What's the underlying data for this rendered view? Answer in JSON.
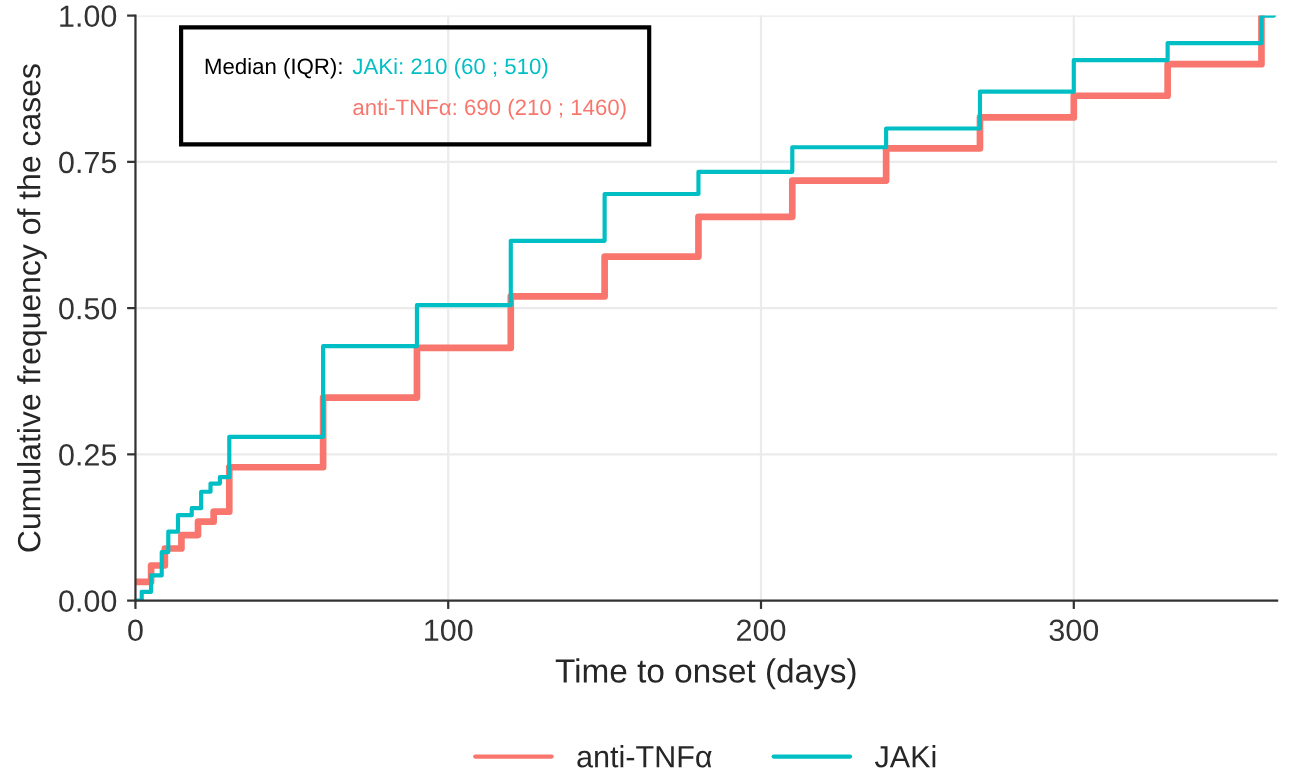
{
  "chart_data": {
    "type": "step",
    "xlabel": "Time to onset (days)",
    "ylabel": "Cumulative frequency of the cases",
    "annotations": [
      "Median (IQR):",
      "JAKi: 210 (60 ; 510)",
      "anti-TNFα: 690 (210 ; 1460)"
    ],
    "series": [
      {
        "name": "anti-TNFα",
        "color": "#f8766d",
        "x": [
          0,
          5,
          9.4,
          14.7,
          20,
          25,
          30,
          60,
          90,
          120,
          150,
          180,
          210,
          240,
          270,
          300,
          330,
          360
        ],
        "values": [
          0.032,
          0.06,
          0.089,
          0.112,
          0.135,
          0.152,
          0.228,
          0.347,
          0.432,
          0.52,
          0.588,
          0.656,
          0.718,
          0.773,
          0.826,
          0.863,
          0.917,
          1.0
        ]
      },
      {
        "name": "JAKi",
        "color": "#00bfc4",
        "x": [
          0,
          2,
          5,
          8.4,
          10.5,
          13.6,
          18,
          21,
          24,
          27,
          30,
          60,
          90,
          120,
          150,
          180,
          210,
          240,
          270,
          300,
          330,
          360,
          364
        ],
        "values": [
          0,
          0.015,
          0.043,
          0.083,
          0.118,
          0.146,
          0.158,
          0.186,
          0.2,
          0.211,
          0.28,
          0.435,
          0.505,
          0.615,
          0.695,
          0.733,
          0.775,
          0.807,
          0.87,
          0.924,
          0.953,
          1.0,
          1.0
        ]
      }
    ],
    "xlim": [
      0,
      365
    ],
    "ylim": [
      0,
      1.0
    ],
    "xticks": [
      0,
      100,
      200,
      300
    ],
    "yticks": [
      {
        "value": 0,
        "label": "0.00"
      },
      {
        "value": 0.25,
        "label": "0.25"
      },
      {
        "value": 0.5,
        "label": "0.50"
      },
      {
        "value": 0.75,
        "label": "0.75"
      },
      {
        "value": 1.0,
        "label": "1.00"
      }
    ],
    "grid": true,
    "legend": "bottom"
  }
}
